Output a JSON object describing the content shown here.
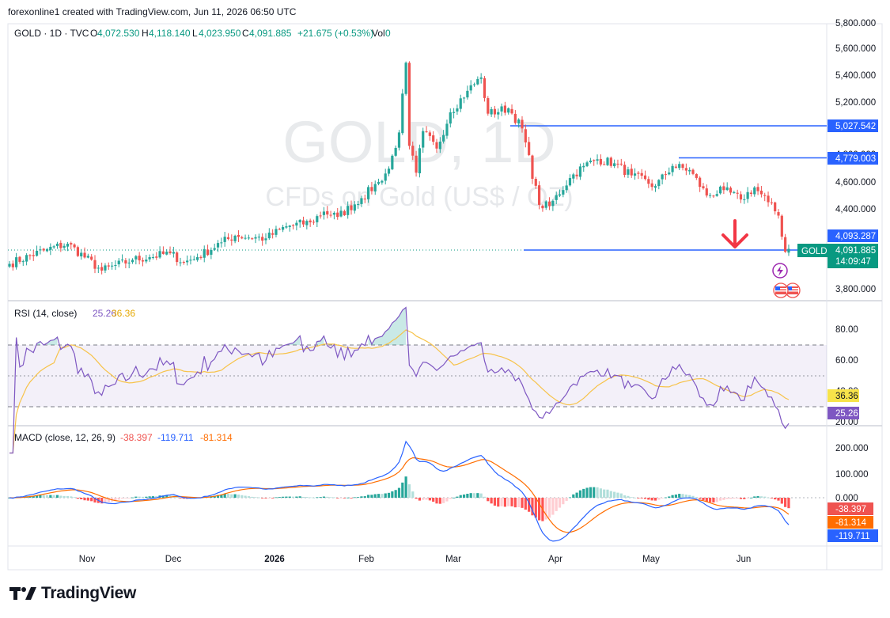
{
  "header": {
    "text": "forexonline1 created with TradingView.com, Jun 11, 2026 06:50 UTC"
  },
  "legend": {
    "symbol": "GOLD · 1D · TVC",
    "o_label": "O",
    "o_value": "4,072.530",
    "h_label": "H",
    "h_value": "4,118.140",
    "l_label": "L",
    "l_value": "4,023.950",
    "c_label": "C",
    "c_value": "4,091.885",
    "change": "+21.675 (+0.53%)",
    "vol_label": "Vol",
    "vol_value": "0"
  },
  "watermark": {
    "line1": "GOLD, 1D",
    "line2": "CFDs on Gold (US$ / OZ)"
  },
  "price_axis": [
    "5,800.000",
    "5,600.000",
    "5,400.000",
    "5,200.000",
    "4,800.000",
    "4,600.000",
    "4,400.000",
    "3,800.000"
  ],
  "horizontal_lines": [
    {
      "value": 5027.542,
      "label": "5,027.542"
    },
    {
      "value": 4779.003,
      "label": "4,779.003"
    },
    {
      "value": 4070.0,
      "label": ""
    }
  ],
  "price_tags": {
    "alt_price": "4,093.287",
    "symbol_tag": "GOLD",
    "last_price": "4,091.885",
    "countdown": "14:09:47"
  },
  "time_axis": [
    "Nov",
    "Dec",
    "2026",
    "Feb",
    "Mar",
    "Apr",
    "May",
    "Jun"
  ],
  "rsi": {
    "title": "RSI (14, close)",
    "value": "25.26",
    "ma_value": "36.36",
    "axis": [
      "80.00",
      "60.00",
      "40.00",
      "20.00"
    ],
    "colors": {
      "rsi": "#7e57c2",
      "ma": "#f7c34a"
    }
  },
  "macd": {
    "title": "MACD (close, 12, 26, 9)",
    "hist": "-38.397",
    "macd": "-119.711",
    "signal": "-81.314",
    "axis": [
      "200.000",
      "100.000",
      "0.000"
    ],
    "colors": {
      "macd": "#2962ff",
      "signal": "#ff6d00",
      "hist_up": "#26a69a",
      "hist_down": "#ef5350"
    }
  },
  "colors": {
    "up": "#26a69a",
    "down": "#ef5350",
    "line": "#2962ff",
    "arrow": "#f23645"
  },
  "footer": {
    "brand": "TradingView"
  },
  "chart_data": {
    "type": "candlestick",
    "x_labels": [
      "Nov",
      "Dec",
      "2026",
      "Feb",
      "Mar",
      "Apr",
      "May",
      "Jun"
    ],
    "y_range": [
      3700,
      5800
    ],
    "keypoints": [
      {
        "t": 0,
        "p": 3980
      },
      {
        "t": 10,
        "p": 4080
      },
      {
        "t": 17,
        "p": 4130
      },
      {
        "t": 27,
        "p": 3930
      },
      {
        "t": 36,
        "p": 4010
      },
      {
        "t": 41,
        "p": 4030
      },
      {
        "t": 47,
        "p": 4060
      },
      {
        "t": 51,
        "p": 3990
      },
      {
        "t": 55,
        "p": 4030
      },
      {
        "t": 62,
        "p": 4140
      },
      {
        "t": 66,
        "p": 4190
      },
      {
        "t": 75,
        "p": 4170
      },
      {
        "t": 81,
        "p": 4260
      },
      {
        "t": 88,
        "p": 4290
      },
      {
        "t": 92,
        "p": 4370
      },
      {
        "t": 96,
        "p": 4330
      },
      {
        "t": 103,
        "p": 4470
      },
      {
        "t": 108,
        "p": 4590
      },
      {
        "t": 111,
        "p": 4690
      },
      {
        "t": 114,
        "p": 4960
      },
      {
        "t": 116,
        "p": 5480
      },
      {
        "t": 117,
        "p": 4860
      },
      {
        "t": 119,
        "p": 4660
      },
      {
        "t": 121,
        "p": 4970
      },
      {
        "t": 125,
        "p": 4840
      },
      {
        "t": 129,
        "p": 5110
      },
      {
        "t": 134,
        "p": 5270
      },
      {
        "t": 138,
        "p": 5370
      },
      {
        "t": 140,
        "p": 5100
      },
      {
        "t": 146,
        "p": 5140
      },
      {
        "t": 150,
        "p": 4990
      },
      {
        "t": 155,
        "p": 4420
      },
      {
        "t": 158,
        "p": 4410
      },
      {
        "t": 164,
        "p": 4620
      },
      {
        "t": 168,
        "p": 4710
      },
      {
        "t": 172,
        "p": 4760
      },
      {
        "t": 177,
        "p": 4730
      },
      {
        "t": 182,
        "p": 4640
      },
      {
        "t": 189,
        "p": 4560
      },
      {
        "t": 194,
        "p": 4710
      },
      {
        "t": 199,
        "p": 4680
      },
      {
        "t": 204,
        "p": 4490
      },
      {
        "t": 209,
        "p": 4530
      },
      {
        "t": 214,
        "p": 4460
      },
      {
        "t": 218,
        "p": 4550
      },
      {
        "t": 222,
        "p": 4440
      },
      {
        "t": 225,
        "p": 4340
      },
      {
        "t": 227,
        "p": 4070
      },
      {
        "t": 228,
        "p": 4092
      }
    ],
    "levels": [
      5027.542,
      4779.003,
      4093.287,
      4091.885
    ]
  }
}
